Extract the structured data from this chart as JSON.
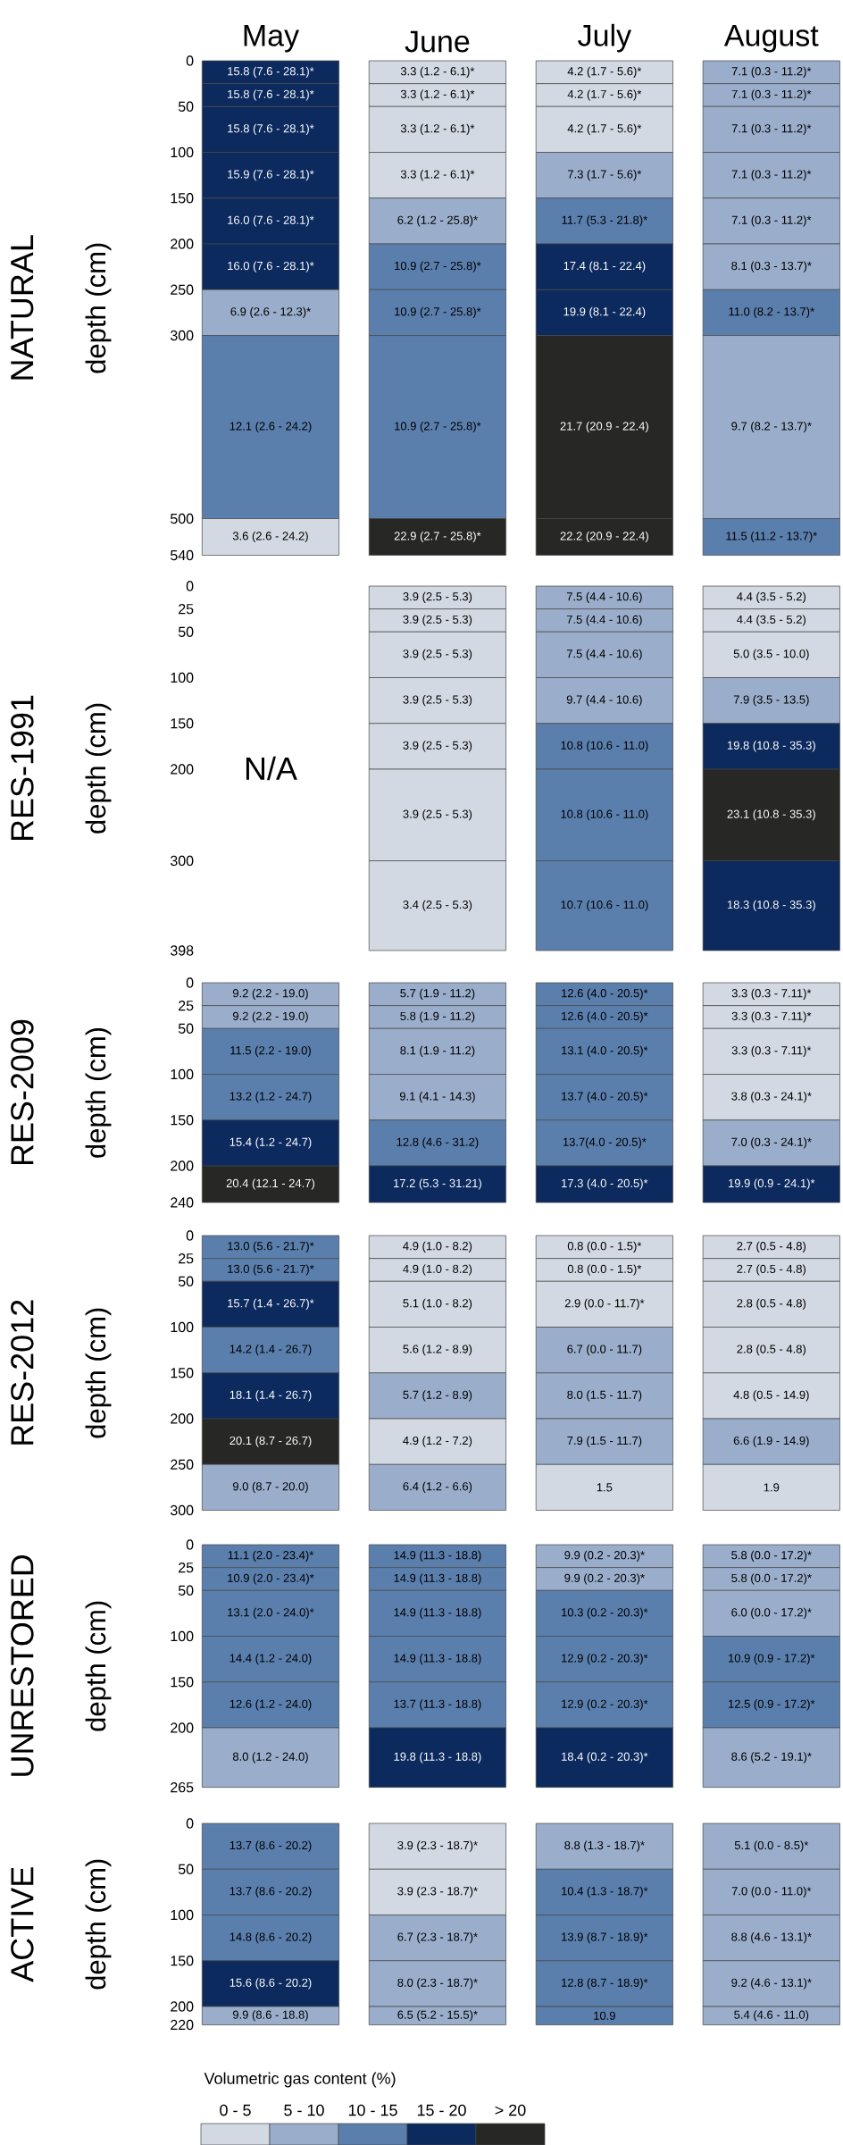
{
  "chart_data": [
    {
      "type": "bar",
      "title": "NATURAL",
      "ylabel": "depth (cm)",
      "stacked": true,
      "categories": [
        "May",
        "June",
        "July",
        "August"
      ],
      "ylim": [
        540,
        0
      ],
      "yticks": [
        0,
        50,
        100,
        150,
        200,
        250,
        300,
        500,
        540
      ],
      "series": [
        {
          "values": [
            25,
            25,
            25,
            25
          ],
          "colors": [
            "#0c2a5e",
            "#d3d9e2",
            "#d3d9e2",
            "#9aaecb"
          ]
        },
        {
          "values": [
            25,
            25,
            25,
            25
          ],
          "colors": [
            "#0c2a5e",
            "#d3d9e2",
            "#d3d9e2",
            "#9aaecb"
          ]
        },
        {
          "values": [
            50,
            50,
            50,
            50
          ],
          "colors": [
            "#0c2a5e",
            "#d3d9e2",
            "#d3d9e2",
            "#9aaecb"
          ]
        },
        {
          "values": [
            50,
            50,
            50,
            50
          ],
          "colors": [
            "#0c2a5e",
            "#d3d9e2",
            "#9aaecb",
            "#9aaecb"
          ]
        },
        {
          "values": [
            50,
            50,
            50,
            50
          ],
          "colors": [
            "#0c2a5e",
            "#9aaecb",
            "#5b7fad",
            "#9aaecb"
          ]
        },
        {
          "values": [
            50,
            50,
            50,
            50
          ],
          "colors": [
            "#0c2a5e",
            "#5b7fad",
            "#0c2a5e",
            "#9aaecb"
          ]
        },
        {
          "values": [
            50,
            50,
            50,
            50
          ],
          "colors": [
            "#9aaecb",
            "#5b7fad",
            "#0c2a5e",
            "#5b7fad"
          ]
        },
        {
          "values": [
            200,
            200,
            200,
            200
          ],
          "colors": [
            "#5b7fad",
            "#5b7fad",
            "#272826",
            "#9aaecb"
          ]
        },
        {
          "values": [
            40,
            40,
            40,
            40
          ],
          "colors": [
            "#d3d9e2",
            "#272826",
            "#272826",
            "#5b7fad"
          ]
        }
      ],
      "annotations": [
        "15.8 (7.6 - 28.1)*",
        "3.3 (1.2 - 6.1)*",
        "4.2 (1.7 - 5.6)*",
        "7.1 (0.3 - 11.2)*",
        "15.8 (7.6 - 28.1)*",
        "3.3 (1.2 - 6.1)*",
        "4.2 (1.7 - 5.6)*",
        "7.1 (0.3 - 11.2)*",
        "15.8 (7.6 - 28.1)*",
        "3.3 (1.2 - 6.1)*",
        "4.2 (1.7 - 5.6)*",
        "7.1 (0.3 - 11.2)*",
        "15.9 (7.6 - 28.1)*",
        "3.3 (1.2 - 6.1)*",
        "7.3 (1.7 - 5.6)*",
        "7.1 (0.3 - 11.2)*",
        "16.0 (7.6 - 28.1)*",
        "6.2 (1.2 - 25.8)*",
        "11.7 (5.3 - 21.8)*",
        "7.1 (0.3 - 11.2)*",
        "16.0 (7.6 - 28.1)*",
        "10.9 (2.7 - 25.8)*",
        "17.4 (8.1 - 22.4)",
        "8.1 (0.3 - 13.7)*",
        "6.9 (2.6 - 12.3)*",
        "10.9 (2.7 - 25.8)*",
        "19.9 (8.1 - 22.4)",
        "11.0 (8.2 - 13.7)*",
        "12.1 (2.6 - 24.2)",
        "10.9 (2.7 - 25.8)*",
        "21.7 (20.9 - 22.4)",
        "9.7 (8.2 - 13.7)*",
        "3.6 (2.6 - 24.2)",
        "22.9 (2.7 - 25.8)*",
        "22.2 (20.9 - 22.4)",
        "11.5 (11.2 - 13.7)*"
      ]
    },
    {
      "type": "bar",
      "title": "RES-1991",
      "ylabel": "depth (cm)",
      "stacked": true,
      "tick_labels": "y",
      "categories": [
        null,
        null,
        null,
        null
      ],
      "ylim": [
        398,
        0
      ],
      "yticks": [
        0,
        25,
        50,
        100,
        150,
        200,
        300,
        398
      ],
      "series": [
        {
          "values": [
            null,
            25,
            25,
            25
          ],
          "colors": [
            null,
            "#d3d9e2",
            "#9aaecb",
            "#d3d9e2"
          ]
        },
        {
          "values": [
            null,
            25,
            25,
            25
          ],
          "colors": [
            null,
            "#d3d9e2",
            "#9aaecb",
            "#d3d9e2"
          ]
        },
        {
          "values": [
            null,
            50,
            50,
            50
          ],
          "colors": [
            null,
            "#d3d9e2",
            "#9aaecb",
            "#d3d9e2"
          ]
        },
        {
          "values": [
            null,
            50,
            50,
            50
          ],
          "colors": [
            null,
            "#d3d9e2",
            "#9aaecb",
            "#9aaecb"
          ]
        },
        {
          "values": [
            null,
            50,
            50,
            50
          ],
          "colors": [
            null,
            "#d3d9e2",
            "#5b7fad",
            "#0c2a5e"
          ]
        },
        {
          "values": [
            null,
            100,
            100,
            100
          ],
          "colors": [
            null,
            "#d3d9e2",
            "#5b7fad",
            "#272826"
          ]
        },
        {
          "values": [
            null,
            98,
            98,
            98
          ],
          "colors": [
            null,
            "#d3d9e2",
            "#5b7fad",
            "#0c2a5e"
          ]
        }
      ],
      "annotations": [
        "3.9 (2.5 - 5.3)",
        "7.5 (4.4 - 10.6)",
        "4.4 (3.5 - 5.2)",
        "3.9 (2.5 - 5.3)",
        "7.5 (4.4 - 10.6)",
        "4.4 (3.5 - 5.2)",
        "3.9 (2.5 - 5.3)",
        "7.5 (4.4 - 10.6)",
        "5.0 (3.5 - 10.0)",
        "3.9 (2.5 - 5.3)",
        "9.7 (4.4 - 10.6)",
        "7.9 (3.5 - 13.5)",
        "3.9 (2.5 - 5.3)",
        "10.8 (10.6 - 11.0)",
        "19.8 (10.8 - 35.3)",
        "3.9 (2.5 - 5.3)",
        "10.8 (10.6 - 11.0)",
        "23.1 (10.8 - 35.3)",
        "3.4 (2.5 - 5.3)",
        "10.7 (10.6 - 11.0)",
        "18.3 (10.8 - 35.3)",
        "N/A"
      ]
    },
    {
      "type": "bar",
      "title": "RES-2009",
      "ylabel": "depth (cm)",
      "stacked": true,
      "tick_labels": "y",
      "categories": [
        null,
        null,
        null,
        null
      ],
      "ylim": [
        240,
        0
      ],
      "yticks": [
        0,
        25,
        50,
        100,
        150,
        200,
        240
      ],
      "series": [
        {
          "values": [
            25,
            25,
            25,
            25
          ],
          "colors": [
            "#9aaecb",
            "#9aaecb",
            "#5b7fad",
            "#d3d9e2"
          ]
        },
        {
          "values": [
            25,
            25,
            25,
            25
          ],
          "colors": [
            "#9aaecb",
            "#9aaecb",
            "#5b7fad",
            "#d3d9e2"
          ]
        },
        {
          "values": [
            50,
            50,
            50,
            50
          ],
          "colors": [
            "#5b7fad",
            "#9aaecb",
            "#5b7fad",
            "#d3d9e2"
          ]
        },
        {
          "values": [
            50,
            50,
            50,
            50
          ],
          "colors": [
            "#5b7fad",
            "#9aaecb",
            "#5b7fad",
            "#d3d9e2"
          ]
        },
        {
          "values": [
            50,
            50,
            50,
            50
          ],
          "colors": [
            "#0c2a5e",
            "#5b7fad",
            "#5b7fad",
            "#9aaecb"
          ]
        },
        {
          "values": [
            40,
            40,
            40,
            40
          ],
          "colors": [
            "#272826",
            "#0c2a5e",
            "#0c2a5e",
            "#0c2a5e"
          ]
        }
      ],
      "annotations": [
        "9.2 (2.2 - 19.0)",
        "5.7 (1.9 - 11.2)",
        "12.6 (4.0 - 20.5)*",
        "3.3 (0.3 - 7.11)*",
        "9.2 (2.2 - 19.0)",
        "5.8 (1.9 - 11.2)",
        "12.6 (4.0 - 20.5)*",
        "3.3 (0.3 - 7.11)*",
        "11.5 (2.2 - 19.0)",
        "8.1 (1.9 - 11.2)",
        "13.1 (4.0 - 20.5)*",
        "3.3 (0.3 - 7.11)*",
        "13.2 (1.2 - 24.7)",
        "9.1 (4.1 - 14.3)",
        "13.7 (4.0 - 20.5)*",
        "3.8 (0.3 - 24.1)*",
        "15.4 (1.2 - 24.7)",
        "12.8 (4.6 - 31.2)",
        "13.7(4.0 - 20.5)*",
        "7.0 (0.3 - 24.1)*",
        "20.4 (12.1 - 24.7)",
        "17.2 (5.3 - 31.21)",
        "17.3 (4.0 - 20.5)*",
        "19.9 (0.9 - 24.1)*"
      ]
    },
    {
      "type": "bar",
      "title": "RES-2012",
      "ylabel": "depth (cm)",
      "stacked": true,
      "tick_labels": "y",
      "categories": [
        null,
        null,
        null,
        null
      ],
      "ylim": [
        300,
        0
      ],
      "yticks": [
        0,
        25,
        50,
        100,
        150,
        200,
        250,
        300
      ],
      "series": [
        {
          "values": [
            25,
            25,
            25,
            25
          ],
          "colors": [
            "#5b7fad",
            "#d3d9e2",
            "#d3d9e2",
            "#d3d9e2"
          ]
        },
        {
          "values": [
            25,
            25,
            25,
            25
          ],
          "colors": [
            "#5b7fad",
            "#d3d9e2",
            "#d3d9e2",
            "#d3d9e2"
          ]
        },
        {
          "values": [
            50,
            50,
            50,
            50
          ],
          "colors": [
            "#0c2a5e",
            "#d3d9e2",
            "#d3d9e2",
            "#d3d9e2"
          ]
        },
        {
          "values": [
            50,
            50,
            50,
            50
          ],
          "colors": [
            "#5b7fad",
            "#d3d9e2",
            "#9aaecb",
            "#d3d9e2"
          ]
        },
        {
          "values": [
            50,
            50,
            50,
            50
          ],
          "colors": [
            "#0c2a5e",
            "#9aaecb",
            "#9aaecb",
            "#d3d9e2"
          ]
        },
        {
          "values": [
            50,
            50,
            50,
            50
          ],
          "colors": [
            "#272826",
            "#d3d9e2",
            "#9aaecb",
            "#9aaecb"
          ]
        },
        {
          "values": [
            50,
            50,
            50,
            50
          ],
          "colors": [
            "#9aaecb",
            "#9aaecb",
            "#d3d9e2",
            "#d3d9e2"
          ]
        }
      ],
      "annotations": [
        "13.0 (5.6 - 21.7)*",
        "4.9 (1.0 - 8.2)",
        "0.8 (0.0 - 1.5)*",
        "2.7 (0.5 - 4.8)",
        "13.0 (5.6 - 21.7)*",
        "4.9 (1.0 - 8.2)",
        "0.8 (0.0 - 1.5)*",
        "2.7 (0.5 - 4.8)",
        "15.7 (1.4 - 26.7)*",
        "5.1 (1.0 - 8.2)",
        "2.9 (0.0 - 11.7)*",
        "2.8 (0.5 - 4.8)",
        "14.2 (1.4 - 26.7)",
        "5.6 (1.2 - 8.9)",
        "6.7 (0.0 - 11.7)",
        "2.8 (0.5 - 4.8)",
        "18.1 (1.4 - 26.7)",
        "5.7 (1.2 - 8.9)",
        "8.0 (1.5 - 11.7)",
        "4.8 (0.5 - 14.9)",
        "20.1 (8.7 - 26.7)",
        "4.9 (1.2 - 7.2)",
        "7.9 (1.5 - 11.7)",
        "6.6 (1.9 - 14.9)",
        "9.0 (8.7 - 20.0)",
        "6.4 (1.2 - 6.6)",
        "1.5",
        "1.9"
      ]
    },
    {
      "type": "bar",
      "title": "UNRESTORED",
      "ylabel": "depth (cm)",
      "stacked": true,
      "tick_labels": "y",
      "categories": [
        null,
        null,
        null,
        null
      ],
      "ylim": [
        265,
        0
      ],
      "yticks": [
        0,
        25,
        50,
        100,
        150,
        200,
        265
      ],
      "series": [
        {
          "values": [
            25,
            25,
            25,
            25
          ],
          "colors": [
            "#5b7fad",
            "#5b7fad",
            "#9aaecb",
            "#9aaecb"
          ]
        },
        {
          "values": [
            25,
            25,
            25,
            25
          ],
          "colors": [
            "#5b7fad",
            "#5b7fad",
            "#9aaecb",
            "#9aaecb"
          ]
        },
        {
          "values": [
            50,
            50,
            50,
            50
          ],
          "colors": [
            "#5b7fad",
            "#5b7fad",
            "#5b7fad",
            "#9aaecb"
          ]
        },
        {
          "values": [
            50,
            50,
            50,
            50
          ],
          "colors": [
            "#5b7fad",
            "#5b7fad",
            "#5b7fad",
            "#5b7fad"
          ]
        },
        {
          "values": [
            50,
            50,
            50,
            50
          ],
          "colors": [
            "#5b7fad",
            "#5b7fad",
            "#5b7fad",
            "#5b7fad"
          ]
        },
        {
          "values": [
            65,
            65,
            65,
            65
          ],
          "colors": [
            "#9aaecb",
            "#0c2a5e",
            "#0c2a5e",
            "#9aaecb"
          ]
        }
      ],
      "annotations": [
        "11.1 (2.0 - 23.4)*",
        "14.9 (11.3 - 18.8)",
        "9.9 (0.2 - 20.3)*",
        "5.8 (0.0 - 17.2)*",
        "10.9 (2.0 - 23.4)*",
        "14.9 (11.3 - 18.8)",
        "9.9 (0.2 - 20.3)*",
        "5.8 (0.0 - 17.2)*",
        "13.1 (2.0 - 24.0)*",
        "14.9 (11.3 - 18.8)",
        "10.3 (0.2 - 20.3)*",
        "6.0 (0.0 - 17.2)*",
        "14.4 (1.2 - 24.0)",
        "14.9 (11.3 - 18.8)",
        "12.9 (0.2 - 20.3)*",
        "10.9 (0.9 - 17.2)*",
        "12.6 (1.2 - 24.0)",
        "13.7 (11.3 - 18.8)",
        "12.9 (0.2 - 20.3)*",
        "12.5 (0.9 - 17.2)*",
        "8.0 (1.2 - 24.0)",
        "19.8 (11.3 - 18.8)",
        "18.4 (0.2 - 20.3)*",
        "8.6 (5.2 - 19.1)*"
      ]
    },
    {
      "type": "bar",
      "title": "ACTIVE",
      "ylabel": "depth (cm)",
      "stacked": true,
      "tick_labels": "y",
      "categories": [
        null,
        null,
        null,
        null
      ],
      "ylim": [
        220,
        0
      ],
      "yticks": [
        0,
        50,
        100,
        150,
        200,
        220
      ],
      "series": [
        {
          "values": [
            50,
            50,
            50,
            50
          ],
          "colors": [
            "#5b7fad",
            "#d3d9e2",
            "#9aaecb",
            "#9aaecb"
          ]
        },
        {
          "values": [
            50,
            50,
            50,
            50
          ],
          "colors": [
            "#5b7fad",
            "#d3d9e2",
            "#5b7fad",
            "#9aaecb"
          ]
        },
        {
          "values": [
            50,
            50,
            50,
            50
          ],
          "colors": [
            "#5b7fad",
            "#9aaecb",
            "#5b7fad",
            "#9aaecb"
          ]
        },
        {
          "values": [
            50,
            50,
            50,
            50
          ],
          "colors": [
            "#0c2a5e",
            "#9aaecb",
            "#5b7fad",
            "#9aaecb"
          ]
        },
        {
          "values": [
            20,
            20,
            20,
            20
          ],
          "colors": [
            "#9aaecb",
            "#9aaecb",
            "#5b7fad",
            "#9aaecb"
          ]
        }
      ],
      "annotations": [
        "13.7 (8.6 - 20.2)",
        "3.9 (2.3 - 18.7)*",
        "8.8 (1.3 - 18.7)*",
        "5.1 (0.0 - 8.5)*",
        "13.7 (8.6 - 20.2)",
        "3.9 (2.3 - 18.7)*",
        "10.4 (1.3 - 18.7)*",
        "7.0 (0.0 - 11.0)*",
        "14.8 (8.6 - 20.2)",
        "6.7 (2.3 - 18.7)*",
        "13.9 (8.7 - 18.9)*",
        "8.8 (4.6 - 13.1)*",
        "15.6 (8.6 - 20.2)",
        "8.0 (2.3 - 18.7)*",
        "12.8 (8.7 - 18.9)*",
        "9.2 (4.6 - 13.1)*",
        "9.9 (8.6 - 18.8)",
        "6.5 (5.2 - 15.5)*",
        "10.9",
        "5.4 (4.6 - 11.0)"
      ]
    },
    {
      "type": "other",
      "title": "Volumetric gas content (%)",
      "categories": [
        "0 - 5",
        "5 - 10",
        "10 - 15",
        "15 - 20",
        "> 20"
      ],
      "colors": [
        "#d3d9e2",
        "#9aaecb",
        "#5b7fad",
        "#0c2a5e",
        "#272826"
      ]
    }
  ]
}
